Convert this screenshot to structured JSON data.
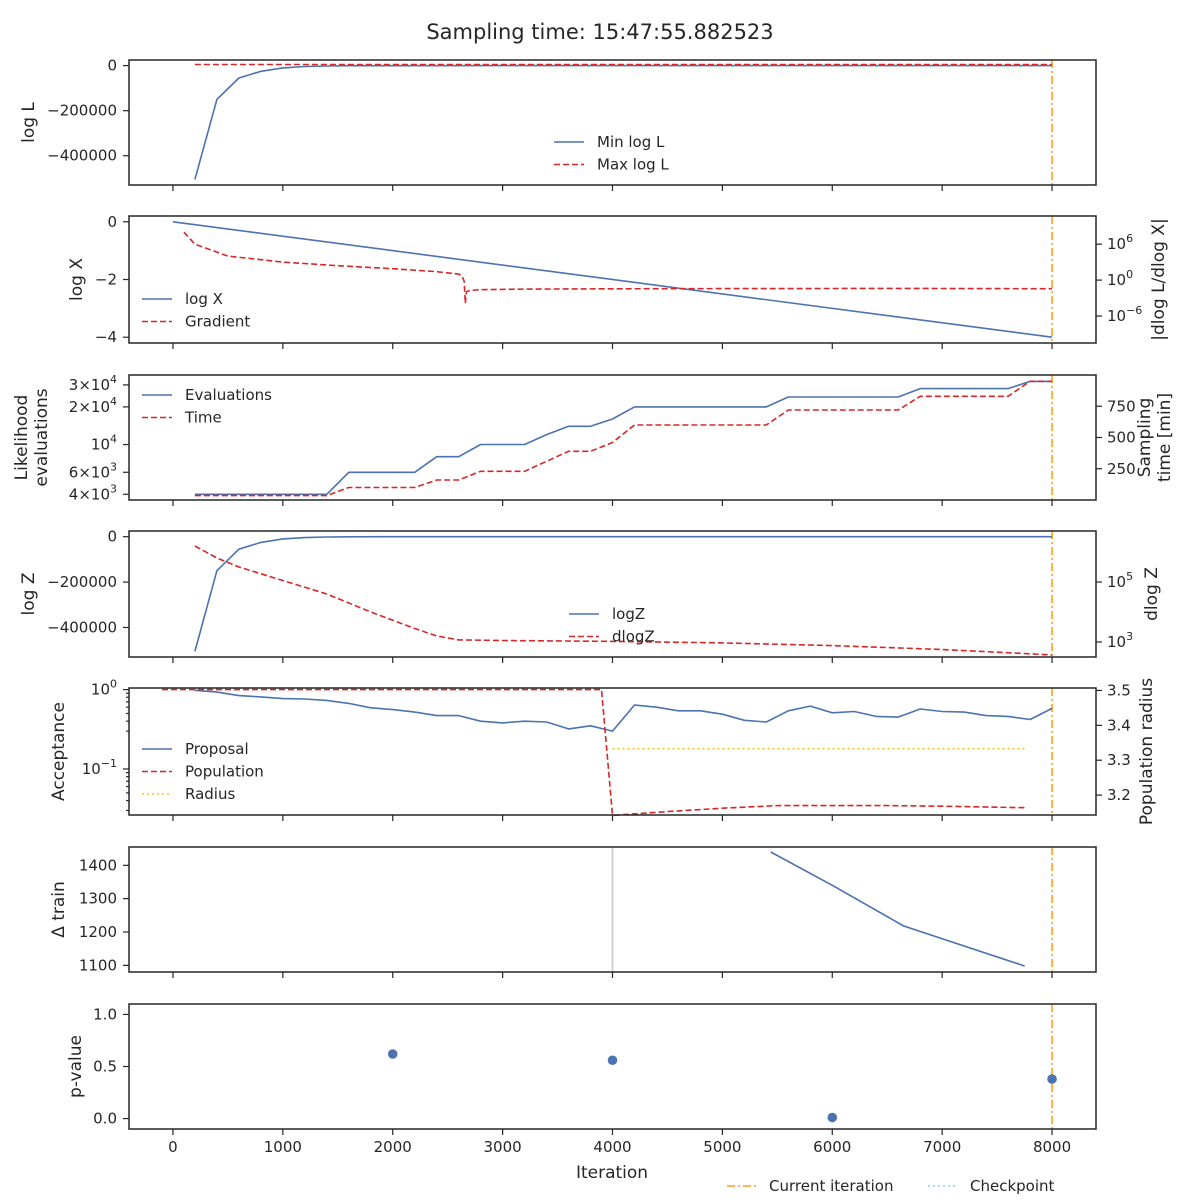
{
  "figure": {
    "title": "Sampling time: 15:47:55.882523",
    "xlabel": "Iteration",
    "xlim": [
      -400,
      8400
    ],
    "xticks": [
      "0",
      "1000",
      "2000",
      "3000",
      "4000",
      "5000",
      "6000",
      "7000",
      "8000"
    ],
    "current_iteration": 8000,
    "colors": {
      "blue": "#4c72b0",
      "red": "#d62728",
      "orange": "#ff9f1c",
      "gold": "#f5c518",
      "gray": "#c8c8c8",
      "cyan": "#7fd4e0"
    },
    "legend": [
      "Current iteration",
      "Checkpoint"
    ]
  },
  "chart_data": [
    {
      "type": "line",
      "ylabel": "log L",
      "ylim": [
        -530000,
        25000
      ],
      "yticks": [
        "0",
        "−200000",
        "−400000"
      ],
      "legend": [
        "Min log L",
        "Max log L"
      ],
      "series": [
        {
          "name": "Min log L",
          "x": [
            200,
            400,
            600,
            800,
            1000,
            1200,
            1400,
            1600,
            2000,
            3000,
            4000,
            5000,
            6000,
            7000,
            8000
          ],
          "values": [
            -505000,
            -150000,
            -55000,
            -25000,
            -10000,
            -4000,
            -1500,
            -500,
            -100,
            -10,
            0,
            0,
            0,
            0,
            0
          ]
        },
        {
          "name": "Max log L",
          "x": [
            200,
            8000
          ],
          "values": [
            5000,
            5000
          ]
        }
      ]
    },
    {
      "type": "line",
      "ylabel": "log X",
      "ylabel_right": "|dlog L/dlog X|",
      "ylim": [
        -4.2,
        0.2
      ],
      "yticks": [
        "0",
        "−2",
        "−4"
      ],
      "yticks_right": [
        "10^6",
        "10^0",
        "10^−6"
      ],
      "legend": [
        "log X",
        "Gradient"
      ],
      "series": [
        {
          "name": "log X",
          "x": [
            0,
            8000
          ],
          "values": [
            0,
            -4
          ]
        },
        {
          "name": "Gradient",
          "x": [
            100,
            200,
            500,
            1000,
            1500,
            2000,
            2400,
            2600,
            2630,
            2650,
            2660,
            2670,
            2690,
            2720,
            2800,
            3200,
            4000,
            5000,
            6000,
            6500,
            7000,
            7500,
            8000
          ],
          "values": [
            8,
            6,
            4,
            3,
            2.4,
            1.9,
            1.4,
            1.0,
            0.7,
            -0.2,
            -3.9,
            -1.95,
            -1.8,
            -1.7,
            -1.6,
            -1.5,
            -1.45,
            -1.42,
            -1.4,
            -1.39,
            -1.41,
            -1.42,
            -1.43
          ]
        }
      ]
    },
    {
      "type": "line",
      "ylabel": "Likelihood evaluations",
      "ylabel_right": "Sampling time [min]",
      "ylim": [
        3600,
        36000
      ],
      "yticks": [
        "3×10^4",
        "2×10^4",
        "10^4",
        "6×10^3",
        "4×10^3"
      ],
      "yticks_right": [
        "750",
        "500",
        "250"
      ],
      "ylim_right": [
        0,
        1000
      ],
      "legend": [
        "Evaluations",
        "Time"
      ],
      "series": [
        {
          "name": "Evaluations",
          "x": [
            200,
            1400,
            1600,
            2200,
            2400,
            2600,
            2800,
            3200,
            3400,
            3600,
            3800,
            4000,
            4200,
            5400,
            5600,
            6600,
            6800,
            7600,
            7800,
            8000
          ],
          "values": [
            4000,
            4000,
            6000,
            6000,
            8000,
            8000,
            10000,
            10000,
            12000,
            14000,
            14000,
            16000,
            20000,
            20000,
            24000,
            24000,
            28000,
            28000,
            32000,
            32000
          ]
        },
        {
          "name": "Time",
          "x": [
            200,
            1400,
            1600,
            2200,
            2400,
            2600,
            2800,
            3200,
            3400,
            3600,
            3800,
            4000,
            4200,
            5400,
            5600,
            6600,
            6800,
            7600,
            7800,
            8000
          ],
          "values": [
            35,
            35,
            100,
            100,
            160,
            160,
            230,
            230,
            310,
            390,
            390,
            460,
            600,
            600,
            720,
            720,
            830,
            830,
            950,
            950
          ]
        }
      ]
    },
    {
      "type": "line",
      "ylabel": "log Z",
      "ylabel_right": "dlog Z",
      "ylim": [
        -530000,
        25000
      ],
      "yticks": [
        "0",
        "−200000",
        "−400000"
      ],
      "yticks_right": [
        "10^5",
        "10^3"
      ],
      "legend": [
        "logZ",
        "dlogZ"
      ],
      "series": [
        {
          "name": "logZ",
          "x": [
            200,
            400,
            600,
            800,
            1000,
            1200,
            1400,
            1600,
            2000,
            3000,
            4000,
            5000,
            6000,
            7000,
            8000
          ],
          "values": [
            -505000,
            -150000,
            -55000,
            -25000,
            -10000,
            -4000,
            -1500,
            -500,
            -100,
            -10,
            0,
            0,
            0,
            0,
            0
          ]
        },
        {
          "name": "dlogZ",
          "x": [
            200,
            400,
            600,
            1000,
            1400,
            1800,
            2200,
            2400,
            2600,
            3000,
            4000,
            5000,
            6000,
            7000,
            8000
          ],
          "values": [
            6.2,
            5.8,
            5.5,
            5.05,
            4.6,
            4.0,
            3.45,
            3.2,
            3.07,
            3.05,
            3.02,
            2.97,
            2.88,
            2.75,
            2.57
          ]
        }
      ]
    },
    {
      "type": "line",
      "ylabel": "Acceptance",
      "ylabel_right": "Population radius",
      "ylim_log10": [
        -1.58,
        0.02
      ],
      "yticks": [
        "10^0",
        "10^−1"
      ],
      "yticks_right": [
        "3.5",
        "3.4",
        "3.3",
        "3.2"
      ],
      "ylim_right": [
        3.143,
        3.507
      ],
      "legend": [
        "Proposal",
        "Population",
        "Radius"
      ],
      "series": [
        {
          "name": "Proposal",
          "x": [
            200,
            400,
            600,
            800,
            1000,
            1200,
            1400,
            1600,
            1800,
            2000,
            2200,
            2400,
            2600,
            2800,
            3000,
            3200,
            3400,
            3600,
            3800,
            4000,
            4200,
            4400,
            4600,
            4800,
            5000,
            5200,
            5400,
            5600,
            5800,
            6000,
            6200,
            6400,
            6600,
            6800,
            7000,
            7200,
            7400,
            7600,
            7800,
            8000
          ],
          "values": [
            0.98,
            0.93,
            0.84,
            0.81,
            0.77,
            0.76,
            0.73,
            0.67,
            0.59,
            0.56,
            0.52,
            0.47,
            0.47,
            0.4,
            0.38,
            0.4,
            0.39,
            0.32,
            0.35,
            0.3,
            0.64,
            0.6,
            0.54,
            0.54,
            0.49,
            0.41,
            0.39,
            0.54,
            0.62,
            0.51,
            0.53,
            0.46,
            0.45,
            0.57,
            0.53,
            0.52,
            0.47,
            0.46,
            0.42,
            0.58
          ]
        },
        {
          "name": "Population",
          "x": [
            -100,
            3900,
            4000,
            4500,
            5000,
            5500,
            6000,
            6500,
            7000,
            7500,
            7750
          ],
          "values": [
            1.0,
            1.0,
            0.026,
            0.029,
            0.032,
            0.0345,
            0.0345,
            0.0345,
            0.034,
            0.033,
            0.0325
          ]
        },
        {
          "name": "Radius",
          "x": [
            4000,
            7750
          ],
          "values": [
            3.333,
            3.333
          ]
        }
      ]
    },
    {
      "type": "line",
      "ylabel": "Δ train",
      "ylim": [
        1080,
        1455
      ],
      "yticks": [
        "1400",
        "1300",
        "1200",
        "1100"
      ],
      "marker_x": 4000,
      "series": [
        {
          "name": "Δ train",
          "x": [
            5440,
            6000,
            6650,
            7750
          ],
          "values": [
            1440,
            1340,
            1218,
            1098
          ]
        }
      ]
    },
    {
      "type": "scatter",
      "ylabel": "p-value",
      "ylim": [
        -0.1,
        1.1
      ],
      "yticks": [
        "1.0",
        "0.5",
        "0.0"
      ],
      "series": [
        {
          "name": "p-value",
          "x": [
            2000,
            4000,
            6000,
            8000
          ],
          "values": [
            0.62,
            0.56,
            0.01,
            0.38
          ]
        }
      ]
    }
  ]
}
